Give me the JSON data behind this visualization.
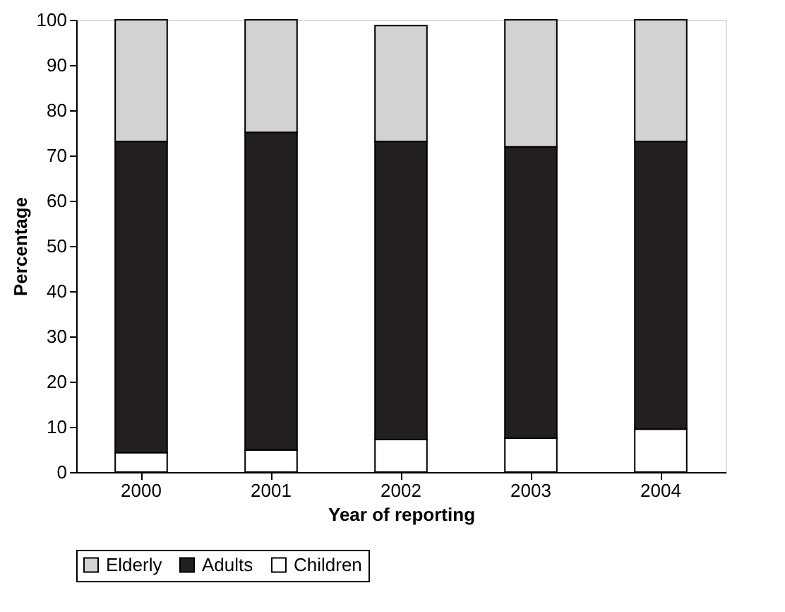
{
  "chart_data": {
    "type": "bar",
    "stacked": true,
    "xlabel": "Year of reporting",
    "ylabel": "Percentage",
    "categories": [
      "2000",
      "2001",
      "2002",
      "2003",
      "2004"
    ],
    "series": [
      {
        "name": "Children",
        "color": "#ffffff",
        "values": [
          4.3,
          4.9,
          7.2,
          7.5,
          9.5
        ]
      },
      {
        "name": "Adults",
        "color": "#231f20",
        "values": [
          68.8,
          70.2,
          65.9,
          64.4,
          63.6
        ]
      },
      {
        "name": "Elderly",
        "color": "#d1d2d4",
        "values": [
          26.9,
          24.9,
          25.6,
          28.1,
          26.9
        ]
      }
    ],
    "ylim": [
      0,
      100
    ],
    "yticks": [
      0,
      10,
      20,
      30,
      40,
      50,
      60,
      70,
      80,
      90,
      100
    ],
    "grid": false,
    "legend": "bottom"
  }
}
